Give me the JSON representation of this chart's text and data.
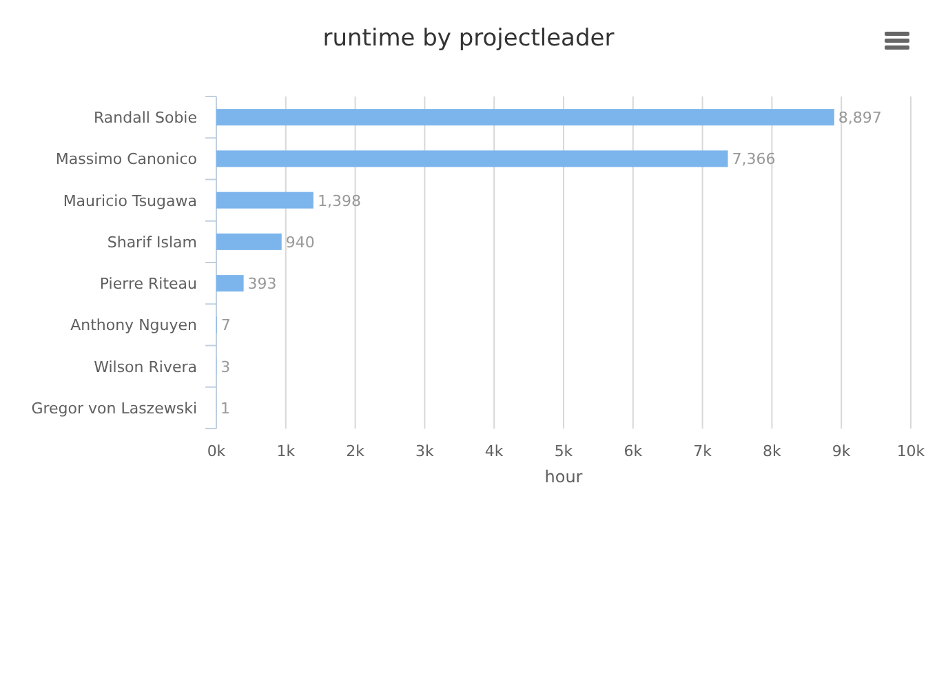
{
  "chart_data": {
    "type": "bar",
    "orientation": "horizontal",
    "title": "runtime by projectleader",
    "xlabel": "hour",
    "categories": [
      "Randall Sobie",
      "Massimo Canonico",
      "Mauricio Tsugawa",
      "Sharif Islam",
      "Pierre Riteau",
      "Anthony Nguyen",
      "Wilson Rivera",
      "Gregor von Laszewski"
    ],
    "values": [
      8897,
      7366,
      1398,
      940,
      393,
      7,
      3,
      1
    ],
    "value_labels": [
      "8,897",
      "7,366",
      "1,398",
      "940",
      "393",
      "7",
      "3",
      "1"
    ],
    "color": "#7cb5ec",
    "xlim": [
      0,
      10000
    ],
    "xticks": [
      {
        "value": 0,
        "label": "0k"
      },
      {
        "value": 1000,
        "label": "1k"
      },
      {
        "value": 2000,
        "label": "2k"
      },
      {
        "value": 3000,
        "label": "3k"
      },
      {
        "value": 4000,
        "label": "4k"
      },
      {
        "value": 5000,
        "label": "5k"
      },
      {
        "value": 6000,
        "label": "6k"
      },
      {
        "value": 7000,
        "label": "7k"
      },
      {
        "value": 8000,
        "label": "8k"
      },
      {
        "value": 9000,
        "label": "9k"
      },
      {
        "value": 10000,
        "label": "10k"
      }
    ],
    "grid": "x"
  }
}
